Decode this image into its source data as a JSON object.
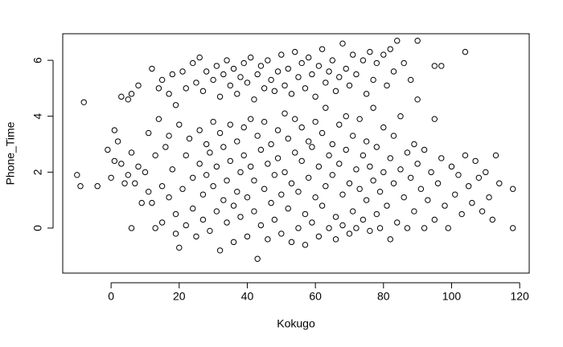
{
  "chart_data": {
    "type": "scatter",
    "x_label": "Kokugo",
    "y_label": "Phone_Time",
    "xlim": [
      -14.2,
      122.8
    ],
    "ylim": [
      -1.61,
      6.95
    ],
    "xticks": [
      0,
      20,
      40,
      60,
      80,
      100,
      120
    ],
    "yticks": [
      0,
      2,
      4,
      6
    ],
    "color": "#000000",
    "x": [
      -8,
      3,
      5,
      6,
      8,
      12,
      14,
      15,
      17,
      18,
      19,
      21,
      22,
      24,
      25,
      26,
      27,
      28,
      30,
      31,
      32,
      33,
      34,
      35,
      36,
      37,
      38,
      39,
      40,
      41,
      42,
      43,
      44,
      45,
      46,
      47,
      48,
      49,
      50,
      51,
      52,
      53,
      54,
      55,
      56,
      57,
      58,
      59,
      60,
      61,
      62,
      63,
      64,
      65,
      66,
      67,
      68,
      69,
      70,
      71,
      72,
      74,
      75,
      76,
      77,
      78,
      80,
      81,
      82,
      83,
      84,
      86,
      88,
      90,
      95,
      97,
      104,
      -10,
      -9,
      -4,
      -1,
      0,
      1,
      1,
      2,
      3,
      4,
      5,
      6,
      6,
      7,
      8,
      9,
      10,
      11,
      11,
      12,
      13,
      13,
      14,
      15,
      15,
      16,
      17,
      17,
      18,
      19,
      19,
      20,
      20,
      21,
      22,
      22,
      23,
      24,
      24,
      25,
      26,
      26,
      27,
      27,
      28,
      28,
      29,
      29,
      30,
      30,
      31,
      31,
      32,
      32,
      33,
      33,
      34,
      34,
      35,
      35,
      36,
      36,
      37,
      37,
      38,
      38,
      39,
      39,
      40,
      40,
      41,
      41,
      42,
      42,
      43,
      43,
      44,
      44,
      45,
      45,
      46,
      46,
      47,
      47,
      48,
      48,
      49,
      49,
      50,
      50,
      51,
      51,
      52,
      52,
      53,
      53,
      54,
      54,
      55,
      55,
      56,
      56,
      57,
      57,
      58,
      58,
      59,
      59,
      60,
      60,
      61,
      61,
      62,
      62,
      63,
      63,
      64,
      64,
      65,
      65,
      66,
      66,
      67,
      67,
      68,
      68,
      69,
      69,
      70,
      70,
      71,
      71,
      72,
      72,
      73,
      73,
      74,
      74,
      75,
      75,
      76,
      76,
      77,
      77,
      78,
      78,
      79,
      79,
      80,
      80,
      81,
      82,
      82,
      83,
      83,
      84,
      85,
      85,
      86,
      87,
      87,
      88,
      89,
      89,
      90,
      90,
      91,
      92,
      92,
      93,
      94,
      95,
      95,
      96,
      97,
      98,
      99,
      100,
      101,
      102,
      103,
      104,
      105,
      106,
      107,
      108,
      109,
      110,
      111,
      112,
      113,
      114,
      118,
      118
    ],
    "values": [
      4.5,
      4.7,
      4.6,
      4.8,
      5.1,
      5.7,
      5.0,
      5.3,
      4.8,
      5.5,
      4.4,
      5.6,
      5.0,
      5.9,
      5.2,
      6.1,
      4.9,
      5.6,
      5.3,
      5.8,
      4.7,
      5.5,
      6.0,
      5.1,
      5.7,
      4.8,
      5.4,
      5.9,
      5.2,
      6.1,
      4.6,
      5.5,
      5.8,
      5.0,
      6.0,
      5.3,
      4.9,
      5.6,
      6.2,
      5.1,
      5.7,
      4.8,
      6.3,
      5.4,
      5.9,
      5.0,
      6.1,
      5.5,
      4.7,
      5.8,
      6.4,
      5.2,
      5.6,
      6.0,
      4.9,
      5.4,
      6.6,
      5.7,
      5.1,
      6.2,
      5.5,
      6.0,
      4.8,
      6.3,
      5.3,
      5.9,
      6.2,
      5.1,
      6.4,
      5.6,
      6.7,
      5.9,
      5.3,
      6.7,
      5.8,
      5.8,
      6.3,
      1.9,
      1.5,
      1.5,
      2.8,
      1.8,
      3.5,
      2.4,
      3.1,
      2.3,
      1.6,
      1.9,
      2.7,
      0,
      1.6,
      2.2,
      0.9,
      2.0,
      3.4,
      1.3,
      0.9,
      2.6,
      0,
      3.9,
      1.5,
      0.2,
      2.9,
      3.3,
      1.1,
      2.1,
      -0.2,
      0.5,
      3.7,
      -0.7,
      1.4,
      2.6,
      0.1,
      3.2,
      1.8,
      0.7,
      -0.3,
      3.5,
      2.3,
      1.2,
      0.3,
      3.0,
      1.9,
      -0.1,
      2.7,
      3.8,
      1.5,
      0.6,
      2.2,
      -0.8,
      3.4,
      1.0,
      2.9,
      0.2,
      1.7,
      3.7,
      2.4,
      0.8,
      -0.5,
      3.1,
      1.3,
      2.0,
      0.4,
      3.6,
      2.6,
      1.1,
      -0.3,
      3.9,
      2.2,
      0.6,
      1.7,
      -1.1,
      3.3,
      2.8,
      0.1,
      1.4,
      3.8,
      2.3,
      -0.4,
      0.9,
      3.0,
      1.9,
      0.3,
      3.5,
      2.5,
      1.2,
      -0.2,
      4.1,
      2.0,
      0.7,
      3.2,
      1.6,
      -0.5,
      2.7,
      3.9,
      0.0,
      1.3,
      3.6,
      2.4,
      0.5,
      -0.6,
      1.8,
      3.1,
      2.9,
      0.2,
      3.8,
      1.1,
      2.2,
      -0.3,
      0.8,
      3.4,
      1.5,
      4.3,
      2.6,
      0.0,
      3.0,
      1.9,
      0.4,
      -0.4,
      2.3,
      3.7,
      1.2,
      0.1,
      2.8,
      4.0,
      1.6,
      -0.2,
      3.3,
      0.6,
      2.1,
      0.0,
      3.9,
      1.4,
      2.6,
      0.3,
      1.0,
      3.1,
      2.2,
      -0.1,
      4.3,
      1.7,
      0.5,
      2.9,
      1.3,
      0.0,
      3.6,
      2.0,
      0.8,
      2.5,
      -0.4,
      1.6,
      3.3,
      0.2,
      2.1,
      4.0,
      1.1,
      2.7,
      0.0,
      1.8,
      3.0,
      0.6,
      2.3,
      4.6,
      1.4,
      0.0,
      2.8,
      1.0,
      2.0,
      3.9,
      0.3,
      1.6,
      2.5,
      0.8,
      0.0,
      2.2,
      1.2,
      1.9,
      0.5,
      2.6,
      1.5,
      0.9,
      2.4,
      1.8,
      0.6,
      2.0,
      1.1,
      0.3,
      2.6,
      1.6,
      1.4,
      0.0
    ]
  }
}
